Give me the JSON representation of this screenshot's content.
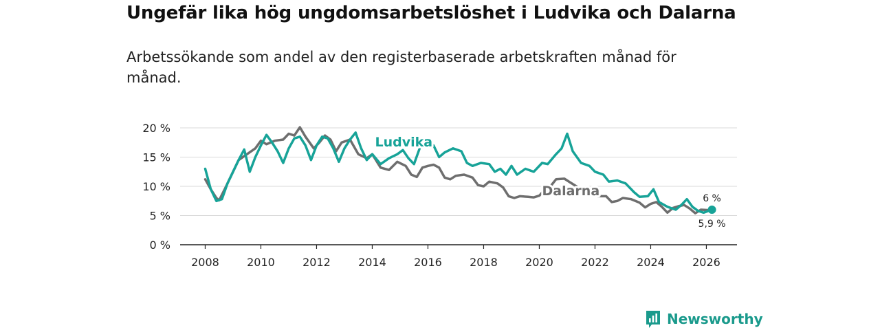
{
  "header": {
    "title": "Ungefär lika hög ungdomsarbetslöshet i Ludvika och Dalarna",
    "subtitle": "Arbetssökande som andel av den registerbaserade arbetskraften månad för månad."
  },
  "brand": {
    "name": "Newsworthy",
    "icon": "bar-chart-bubble-icon"
  },
  "chart_data": {
    "type": "line",
    "x_ticks": [
      2008,
      2010,
      2012,
      2014,
      2016,
      2018,
      2020,
      2022,
      2024,
      2026
    ],
    "x_tick_labels": [
      "2008",
      "2010",
      "2012",
      "2014",
      "2016",
      "2018",
      "2020",
      "2022",
      "2024",
      "2026"
    ],
    "y_ticks": [
      0,
      5,
      10,
      15,
      20
    ],
    "y_tick_labels": [
      "0 %",
      "5 %",
      "10 %",
      "15 %",
      "20 %"
    ],
    "xlim": [
      2007.1,
      2027.1
    ],
    "ylim": [
      0,
      20
    ],
    "grid": true,
    "series": [
      {
        "name": "Dalarna",
        "color": "#6e6e6e",
        "label_year": 2020.1,
        "label_y": 8.5,
        "end_label": "5,9 %",
        "points": [
          [
            2008.0,
            11.2
          ],
          [
            2008.2,
            9.5
          ],
          [
            2008.4,
            8.0
          ],
          [
            2008.5,
            7.6
          ],
          [
            2008.7,
            9.5
          ],
          [
            2009.0,
            12.5
          ],
          [
            2009.2,
            14.5
          ],
          [
            2009.5,
            15.5
          ],
          [
            2009.8,
            16.5
          ],
          [
            2010.0,
            17.8
          ],
          [
            2010.2,
            17.2
          ],
          [
            2010.5,
            17.8
          ],
          [
            2010.8,
            18.0
          ],
          [
            2011.0,
            19.0
          ],
          [
            2011.2,
            18.7
          ],
          [
            2011.4,
            20.1
          ],
          [
            2011.6,
            18.5
          ],
          [
            2011.9,
            16.5
          ],
          [
            2012.1,
            17.5
          ],
          [
            2012.3,
            18.7
          ],
          [
            2012.5,
            18.0
          ],
          [
            2012.7,
            16.0
          ],
          [
            2012.9,
            17.5
          ],
          [
            2013.2,
            18.0
          ],
          [
            2013.5,
            15.5
          ],
          [
            2013.8,
            14.8
          ],
          [
            2014.0,
            15.5
          ],
          [
            2014.3,
            13.2
          ],
          [
            2014.6,
            12.8
          ],
          [
            2014.9,
            14.2
          ],
          [
            2015.2,
            13.5
          ],
          [
            2015.4,
            12.0
          ],
          [
            2015.6,
            11.6
          ],
          [
            2015.8,
            13.2
          ],
          [
            2016.0,
            13.5
          ],
          [
            2016.2,
            13.7
          ],
          [
            2016.4,
            13.2
          ],
          [
            2016.6,
            11.5
          ],
          [
            2016.8,
            11.2
          ],
          [
            2017.0,
            11.8
          ],
          [
            2017.3,
            12.0
          ],
          [
            2017.6,
            11.5
          ],
          [
            2017.8,
            10.2
          ],
          [
            2018.0,
            10.0
          ],
          [
            2018.2,
            10.8
          ],
          [
            2018.5,
            10.5
          ],
          [
            2018.7,
            9.8
          ],
          [
            2018.9,
            8.3
          ],
          [
            2019.1,
            8.0
          ],
          [
            2019.3,
            8.3
          ],
          [
            2019.6,
            8.2
          ],
          [
            2019.8,
            8.1
          ],
          [
            2020.0,
            8.4
          ],
          [
            2020.2,
            9.5
          ],
          [
            2020.4,
            10.0
          ],
          [
            2020.6,
            11.2
          ],
          [
            2020.9,
            11.3
          ],
          [
            2021.1,
            10.7
          ],
          [
            2021.4,
            9.8
          ],
          [
            2021.6,
            9.2
          ],
          [
            2021.9,
            9.1
          ],
          [
            2022.1,
            8.3
          ],
          [
            2022.4,
            8.3
          ],
          [
            2022.6,
            7.3
          ],
          [
            2022.8,
            7.5
          ],
          [
            2023.0,
            8.0
          ],
          [
            2023.3,
            7.8
          ],
          [
            2023.6,
            7.2
          ],
          [
            2023.8,
            6.4
          ],
          [
            2024.0,
            7.0
          ],
          [
            2024.2,
            7.3
          ],
          [
            2024.4,
            6.5
          ],
          [
            2024.6,
            5.5
          ],
          [
            2024.8,
            6.3
          ],
          [
            2025.0,
            6.6
          ],
          [
            2025.2,
            6.8
          ],
          [
            2025.4,
            6.2
          ],
          [
            2025.6,
            5.4
          ],
          [
            2025.8,
            6.0
          ],
          [
            2026.2,
            5.9
          ]
        ]
      },
      {
        "name": "Ludvika",
        "color": "#17a398",
        "label_year": 2014.1,
        "label_y": 16.8,
        "end_label": "6 %",
        "points": [
          [
            2008.0,
            13.0
          ],
          [
            2008.2,
            9.5
          ],
          [
            2008.4,
            7.5
          ],
          [
            2008.6,
            7.8
          ],
          [
            2008.8,
            10.5
          ],
          [
            2009.0,
            12.5
          ],
          [
            2009.2,
            14.5
          ],
          [
            2009.4,
            16.3
          ],
          [
            2009.6,
            12.5
          ],
          [
            2009.8,
            15.0
          ],
          [
            2010.0,
            17.0
          ],
          [
            2010.2,
            18.8
          ],
          [
            2010.4,
            17.5
          ],
          [
            2010.6,
            16.0
          ],
          [
            2010.8,
            14.0
          ],
          [
            2011.0,
            16.5
          ],
          [
            2011.2,
            18.2
          ],
          [
            2011.4,
            18.5
          ],
          [
            2011.6,
            17.0
          ],
          [
            2011.8,
            14.5
          ],
          [
            2012.0,
            17.0
          ],
          [
            2012.2,
            18.5
          ],
          [
            2012.4,
            18.2
          ],
          [
            2012.6,
            16.5
          ],
          [
            2012.8,
            14.2
          ],
          [
            2013.0,
            16.5
          ],
          [
            2013.2,
            18.0
          ],
          [
            2013.4,
            19.2
          ],
          [
            2013.6,
            16.5
          ],
          [
            2013.8,
            14.5
          ],
          [
            2014.0,
            15.5
          ],
          [
            2014.3,
            13.8
          ],
          [
            2014.6,
            14.8
          ],
          [
            2014.9,
            15.5
          ],
          [
            2015.1,
            16.2
          ],
          [
            2015.3,
            14.8
          ],
          [
            2015.5,
            13.8
          ],
          [
            2015.8,
            17.8
          ],
          [
            2016.0,
            17.5
          ],
          [
            2016.2,
            17.0
          ],
          [
            2016.4,
            15.0
          ],
          [
            2016.6,
            15.8
          ],
          [
            2016.9,
            16.5
          ],
          [
            2017.2,
            16.0
          ],
          [
            2017.4,
            14.0
          ],
          [
            2017.6,
            13.5
          ],
          [
            2017.9,
            14.0
          ],
          [
            2018.2,
            13.8
          ],
          [
            2018.4,
            12.5
          ],
          [
            2018.6,
            13.0
          ],
          [
            2018.8,
            12.0
          ],
          [
            2019.0,
            13.5
          ],
          [
            2019.2,
            12.0
          ],
          [
            2019.5,
            13.0
          ],
          [
            2019.8,
            12.5
          ],
          [
            2020.1,
            14.0
          ],
          [
            2020.3,
            13.8
          ],
          [
            2020.6,
            15.5
          ],
          [
            2020.8,
            16.5
          ],
          [
            2021.0,
            19.0
          ],
          [
            2021.2,
            16.0
          ],
          [
            2021.5,
            14.0
          ],
          [
            2021.8,
            13.5
          ],
          [
            2022.0,
            12.5
          ],
          [
            2022.3,
            12.0
          ],
          [
            2022.5,
            10.8
          ],
          [
            2022.8,
            11.0
          ],
          [
            2023.1,
            10.5
          ],
          [
            2023.4,
            9.0
          ],
          [
            2023.6,
            8.2
          ],
          [
            2023.9,
            8.3
          ],
          [
            2024.1,
            9.5
          ],
          [
            2024.3,
            7.3
          ],
          [
            2024.6,
            6.5
          ],
          [
            2024.9,
            6.0
          ],
          [
            2025.1,
            6.8
          ],
          [
            2025.3,
            7.8
          ],
          [
            2025.5,
            6.5
          ],
          [
            2025.7,
            5.8
          ],
          [
            2025.9,
            5.5
          ],
          [
            2026.2,
            6.0
          ]
        ]
      }
    ]
  }
}
